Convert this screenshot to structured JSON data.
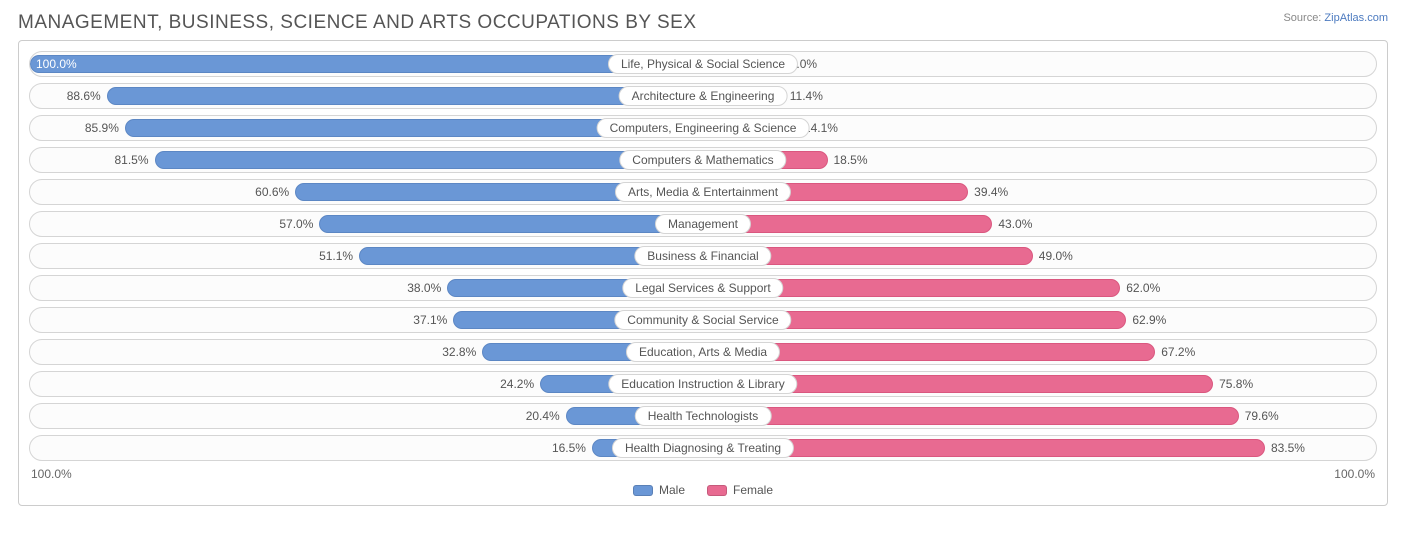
{
  "title": "MANAGEMENT, BUSINESS, SCIENCE AND ARTS OCCUPATIONS BY SEX",
  "source_prefix": "Source: ",
  "source_link": "ZipAtlas.com",
  "chart": {
    "type": "diverging-bar",
    "axis_left": "100.0%",
    "axis_right": "100.0%",
    "male_color": "#6a97d6",
    "female_color": "#e86a91",
    "track_border": "#d5d5d5",
    "label_font_size": 12,
    "title_color": "#555555"
  },
  "legend": {
    "male": "Male",
    "female": "Female"
  },
  "rows": [
    {
      "category": "Life, Physical & Social Science",
      "male": 100.0,
      "female": 0.0
    },
    {
      "category": "Architecture & Engineering",
      "male": 88.6,
      "female": 11.4
    },
    {
      "category": "Computers, Engineering & Science",
      "male": 85.9,
      "female": 14.1
    },
    {
      "category": "Computers & Mathematics",
      "male": 81.5,
      "female": 18.5
    },
    {
      "category": "Arts, Media & Entertainment",
      "male": 60.6,
      "female": 39.4
    },
    {
      "category": "Management",
      "male": 57.0,
      "female": 43.0
    },
    {
      "category": "Business & Financial",
      "male": 51.1,
      "female": 49.0
    },
    {
      "category": "Legal Services & Support",
      "male": 38.0,
      "female": 62.0
    },
    {
      "category": "Community & Social Service",
      "male": 37.1,
      "female": 62.9
    },
    {
      "category": "Education, Arts & Media",
      "male": 32.8,
      "female": 67.2
    },
    {
      "category": "Education Instruction & Library",
      "male": 24.2,
      "female": 75.8
    },
    {
      "category": "Health Technologists",
      "male": 20.4,
      "female": 79.6
    },
    {
      "category": "Health Diagnosing & Treating",
      "male": 16.5,
      "female": 83.5
    }
  ]
}
